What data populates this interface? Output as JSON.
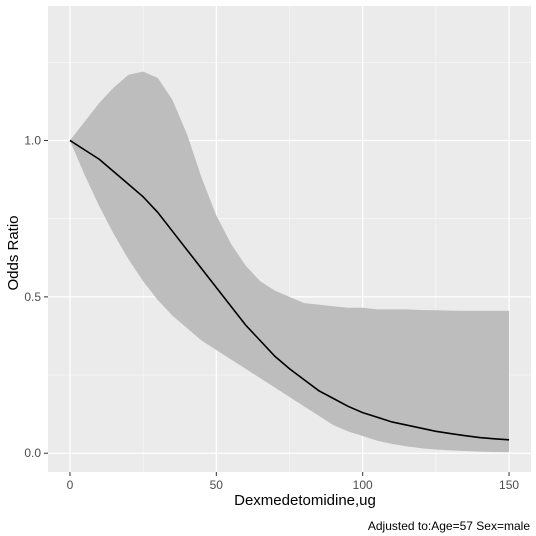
{
  "chart_data": {
    "type": "line",
    "title": "",
    "xlabel": "Dexmedetomidine,ug",
    "ylabel": "Odds Ratio",
    "caption": "Adjusted to:Age=57 Sex=male",
    "xlim": [
      -7.5,
      157.5
    ],
    "ylim": [
      -0.06,
      1.43
    ],
    "x_ticks": [
      0,
      50,
      100,
      150
    ],
    "x_tick_labels": [
      "0",
      "50",
      "100",
      "150"
    ],
    "y_ticks": [
      0.0,
      0.5,
      1.0
    ],
    "y_tick_labels": [
      "0.0",
      "0.5",
      "1.0"
    ],
    "grid": true,
    "legend": "none",
    "series": [
      {
        "kind": "line",
        "color": "#000000",
        "x": [
          0,
          5,
          10,
          15,
          20,
          25,
          30,
          35,
          40,
          45,
          50,
          55,
          60,
          65,
          70,
          75,
          80,
          85,
          90,
          95,
          100,
          105,
          110,
          115,
          120,
          125,
          130,
          135,
          140,
          145,
          150
        ],
        "y": [
          1.0,
          0.97,
          0.94,
          0.9,
          0.86,
          0.82,
          0.77,
          0.71,
          0.65,
          0.59,
          0.53,
          0.47,
          0.41,
          0.36,
          0.31,
          0.27,
          0.235,
          0.2,
          0.175,
          0.15,
          0.13,
          0.115,
          0.1,
          0.09,
          0.08,
          0.07,
          0.063,
          0.056,
          0.05,
          0.046,
          0.043
        ]
      },
      {
        "kind": "ribbon",
        "color": "#bdbdbd",
        "x": [
          0,
          5,
          10,
          15,
          20,
          25,
          30,
          35,
          40,
          45,
          50,
          55,
          60,
          65,
          70,
          75,
          80,
          85,
          90,
          95,
          100,
          105,
          110,
          115,
          120,
          125,
          130,
          135,
          140,
          145,
          150
        ],
        "upper": [
          1.0,
          1.06,
          1.12,
          1.17,
          1.21,
          1.22,
          1.2,
          1.13,
          1.02,
          0.88,
          0.76,
          0.67,
          0.6,
          0.55,
          0.52,
          0.5,
          0.48,
          0.475,
          0.47,
          0.465,
          0.465,
          0.46,
          0.46,
          0.46,
          0.458,
          0.457,
          0.456,
          0.455,
          0.455,
          0.455,
          0.455
        ],
        "lower": [
          1.0,
          0.89,
          0.79,
          0.7,
          0.62,
          0.55,
          0.49,
          0.44,
          0.4,
          0.36,
          0.33,
          0.3,
          0.27,
          0.24,
          0.21,
          0.18,
          0.15,
          0.12,
          0.09,
          0.07,
          0.055,
          0.04,
          0.03,
          0.022,
          0.016,
          0.012,
          0.009,
          0.007,
          0.005,
          0.004,
          0.003
        ]
      }
    ]
  },
  "colors": {
    "panel_background": "#ebebeb",
    "grid_major": "#ffffff",
    "ribbon": "#bdbdbd",
    "line": "#000000"
  }
}
